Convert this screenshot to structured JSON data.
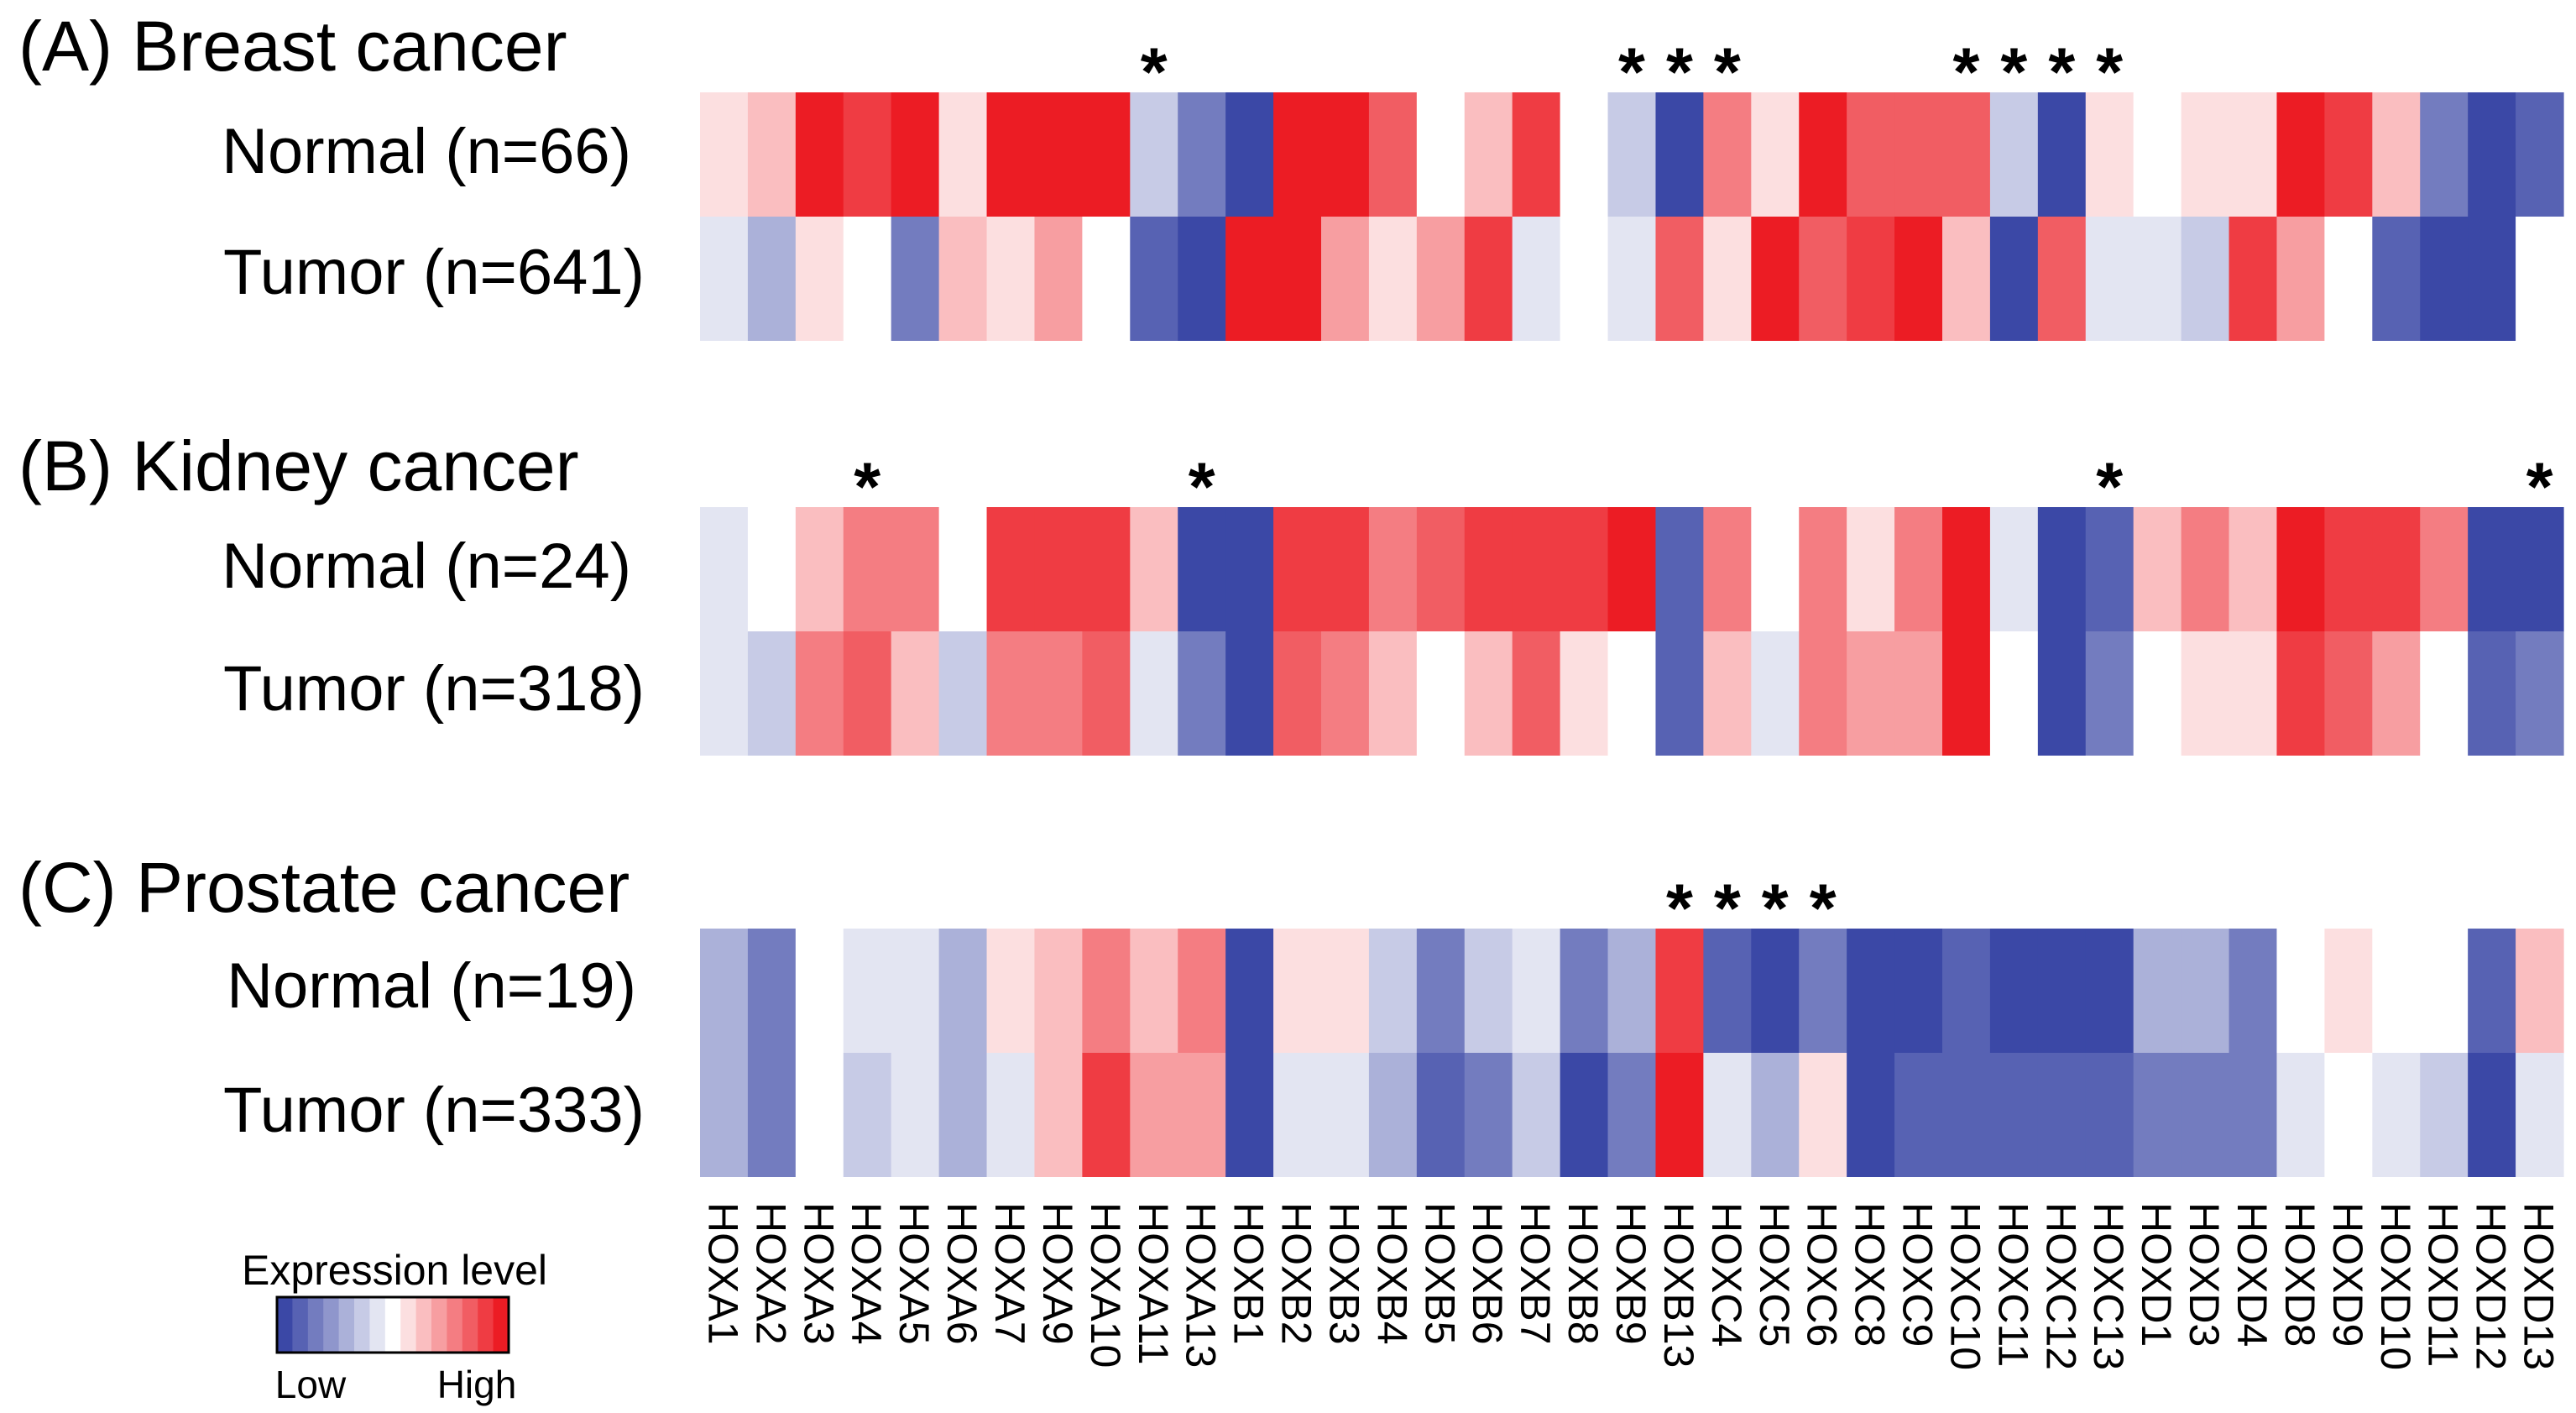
{
  "chart_data": {
    "type": "heatmap",
    "genes": [
      "HOXA1",
      "HOXA2",
      "HOXA3",
      "HOXA4",
      "HOXA5",
      "HOXA6",
      "HOXA7",
      "HOXA9",
      "HOXA10",
      "HOXA11",
      "HOXA13",
      "HOXB1",
      "HOXB2",
      "HOXB3",
      "HOXB4",
      "HOXB5",
      "HOXB6",
      "HOXB7",
      "HOXB8",
      "HOXB9",
      "HOXB13",
      "HOXC4",
      "HOXC5",
      "HOXC6",
      "HOXC8",
      "HOXC9",
      "HOXC10",
      "HOXC11",
      "HOXC12",
      "HOXC13",
      "HOXD1",
      "HOXD3",
      "HOXD4",
      "HOXD8",
      "HOXD9",
      "HOXD10",
      "HOXD11",
      "HOXD12",
      "HOXD13"
    ],
    "scale": {
      "min": -7,
      "max": 7,
      "low_color": "#3b48a6",
      "mid_color": "#ffffff",
      "high_color": "#ec1c24"
    },
    "legend": {
      "title": "Expression level",
      "low_label": "Low",
      "high_label": "High"
    },
    "panels": [
      {
        "title": "(A) Breast cancer",
        "rows": [
          {
            "label": "Normal (n=66)",
            "values": [
              1,
              2,
              7,
              6,
              7,
              1,
              7,
              7,
              7,
              -2,
              -5,
              -7,
              7,
              7,
              5,
              0,
              2,
              6,
              0,
              -2,
              -7,
              4,
              1,
              7,
              5,
              5,
              5,
              -2,
              -7,
              1,
              0,
              1,
              1,
              7,
              6,
              2,
              -5,
              -7,
              -6
            ]
          },
          {
            "label": "Tumor (n=641)",
            "values": [
              -1,
              -3,
              1,
              0,
              -5,
              2,
              1,
              3,
              0,
              -6,
              -7,
              7,
              7,
              3,
              1,
              3,
              6,
              -1,
              0,
              -1,
              5,
              1,
              7,
              5,
              6,
              7,
              2,
              -7,
              5,
              -1,
              -1,
              -2,
              6,
              3,
              0,
              -6,
              -7,
              -7,
              0
            ]
          }
        ],
        "stars": [
          "HOXA11",
          "HOXB9",
          "HOXB13",
          "HOXC4",
          "HOXC10",
          "HOXC11",
          "HOXC12",
          "HOXC13"
        ]
      },
      {
        "title": "(B) Kidney cancer",
        "rows": [
          {
            "label": "Normal (n=24)",
            "values": [
              -1,
              0,
              2,
              4,
              4,
              0,
              6,
              6,
              6,
              2,
              -7,
              -7,
              6,
              6,
              4,
              5,
              6,
              6,
              6,
              7,
              -6,
              4,
              0,
              4,
              1,
              4,
              7,
              -1,
              -7,
              -6,
              2,
              4,
              2,
              7,
              6,
              6,
              4,
              -7,
              -7
            ]
          },
          {
            "label": "Tumor (n=318)",
            "values": [
              -1,
              -2,
              4,
              5,
              2,
              -2,
              4,
              4,
              5,
              -1,
              -5,
              -7,
              5,
              4,
              2,
              0,
              2,
              5,
              1,
              0,
              -6,
              2,
              -1,
              4,
              3,
              3,
              7,
              0,
              -7,
              -5,
              0,
              1,
              1,
              6,
              5,
              3,
              0,
              -6,
              -5
            ]
          }
        ],
        "stars": [
          "HOXA4",
          "HOXA13",
          "HOXC13",
          "HOXD13"
        ]
      },
      {
        "title": "(C) Prostate cancer",
        "rows": [
          {
            "label": "Normal (n=19)",
            "values": [
              -3,
              -5,
              0,
              -1,
              -1,
              -3,
              1,
              2,
              4,
              2,
              4,
              -7,
              1,
              1,
              -2,
              -5,
              -2,
              -1,
              -5,
              -3,
              6,
              -6,
              -7,
              -5,
              -7,
              -7,
              -6,
              -7,
              -7,
              -7,
              -3,
              -3,
              -5,
              0,
              1,
              0,
              0,
              -6,
              2
            ]
          },
          {
            "label": "Tumor (n=333)",
            "values": [
              -3,
              -5,
              0,
              -2,
              -1,
              -3,
              -1,
              2,
              6,
              3,
              3,
              -7,
              -1,
              -1,
              -3,
              -6,
              -5,
              -2,
              -7,
              -5,
              7,
              -1,
              -3,
              1,
              -7,
              -6,
              -6,
              -6,
              -6,
              -6,
              -5,
              -5,
              -5,
              -1,
              0,
              -1,
              -2,
              -7,
              -1
            ]
          }
        ],
        "stars": [
          "HOXB13",
          "HOXC4",
          "HOXC5",
          "HOXC6"
        ]
      }
    ]
  }
}
